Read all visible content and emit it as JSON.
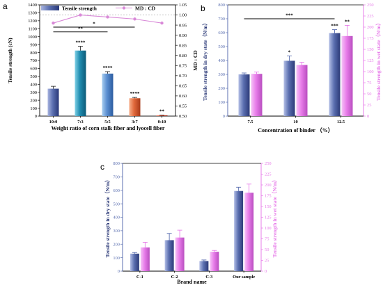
{
  "chart_data": [
    {
      "panel_label": "a",
      "type": "bar",
      "categories": [
        "10:0",
        "7:3",
        "5:5",
        "3:7",
        "0:10"
      ],
      "series": [
        {
          "name": "Tensile strength",
          "type": "bar",
          "axis": "left",
          "values": [
            345,
            825,
            535,
            225,
            10
          ],
          "errors": [
            30,
            55,
            25,
            10,
            3
          ]
        },
        {
          "name": "MD : CD",
          "type": "line",
          "axis": "right",
          "values": [
            0.96,
            1.0,
            0.99,
            0.98,
            0.96
          ]
        }
      ],
      "bar_colors": [
        "#5b6fb0",
        "#1f8cb0",
        "#5a8ed0",
        "#e0673a",
        "#d04a30"
      ],
      "line_color": "#d98ad8",
      "xlabel": "Weight ratio of corn stalk fiber and lyocell fiber",
      "ylabel": "Tensile strength (cN)",
      "ylabel_right": "MD : CD",
      "ylim": [
        0,
        1400
      ],
      "yticks": [
        0,
        100,
        200,
        300,
        400,
        500,
        600,
        700,
        800,
        900,
        1000,
        1100,
        1200,
        1300,
        1400
      ],
      "ylim_right": [
        0.5,
        1.05
      ],
      "yticks_right": [
        "0.50",
        "0.55",
        "0.60",
        "0.65",
        "0.70",
        "0.75",
        "0.80",
        "0.85",
        "0.90",
        "0.95",
        "1.00",
        "1.05"
      ],
      "legend_position": "top",
      "bar_annotations": [
        "",
        "****",
        "****",
        "****",
        "**"
      ],
      "brackets": [
        {
          "from": 0,
          "to": 2,
          "label": "**",
          "y": 1060
        },
        {
          "from": 0,
          "to": 3,
          "label": "*",
          "y": 1120
        }
      ],
      "reference_line": 1.0
    },
    {
      "panel_label": "b",
      "type": "bar",
      "categories": [
        "7.5",
        "10",
        "12.5"
      ],
      "series": [
        {
          "name": "dry",
          "axis": "left",
          "color": "#5b6fb0",
          "values": [
            300,
            398,
            597
          ],
          "errors": [
            10,
            35,
            25
          ]
        },
        {
          "name": "wet",
          "axis": "right",
          "color": "#e77ce9",
          "values": [
            95,
            115,
            180
          ],
          "errors": [
            4,
            6,
            24
          ]
        }
      ],
      "xlabel": "Concentration of binder （%）",
      "ylabel": "Tensile strength in dry state（N/m）",
      "ylabel_right": "Tensile strength in wet state（N/m）",
      "ylim": [
        0,
        800
      ],
      "yticks": [
        0,
        100,
        200,
        300,
        400,
        500,
        600,
        700,
        800
      ],
      "ylim_right": [
        0,
        250
      ],
      "yticks_right": [
        0,
        25,
        50,
        75,
        100,
        125,
        150,
        175,
        200,
        225,
        250
      ],
      "annotations": [
        {
          "category": 1,
          "series": "dry",
          "label": "*"
        },
        {
          "category": 2,
          "series": "dry",
          "label": "***"
        },
        {
          "category": 2,
          "series": "wet",
          "label": "**"
        }
      ],
      "brackets": [
        {
          "from": 0,
          "to": 2,
          "label": "***",
          "y": 700
        }
      ]
    },
    {
      "panel_label": "c",
      "type": "bar",
      "categories": [
        "C-1",
        "C-2",
        "C-3",
        "Our sample"
      ],
      "series": [
        {
          "name": "dry",
          "axis": "left",
          "color": "#5b6fb0",
          "values": [
            130,
            230,
            75,
            595
          ],
          "errors": [
            8,
            50,
            8,
            28
          ]
        },
        {
          "name": "wet",
          "axis": "right",
          "color": "#e77ce9",
          "values": [
            55,
            78,
            45,
            182
          ],
          "errors": [
            12,
            17,
            3,
            20
          ]
        }
      ],
      "xlabel": "Brand name",
      "ylabel": "Tensile strength in dry state（N/m）",
      "ylabel_right": "Tensile strength in wet state（N/m）",
      "ylim": [
        0,
        800
      ],
      "yticks": [
        0,
        100,
        200,
        300,
        400,
        500,
        600,
        700,
        800
      ],
      "ylim_right": [
        0,
        250
      ],
      "yticks_right": [
        0,
        25,
        50,
        75,
        100,
        125,
        150,
        175,
        200,
        225,
        250
      ]
    }
  ]
}
